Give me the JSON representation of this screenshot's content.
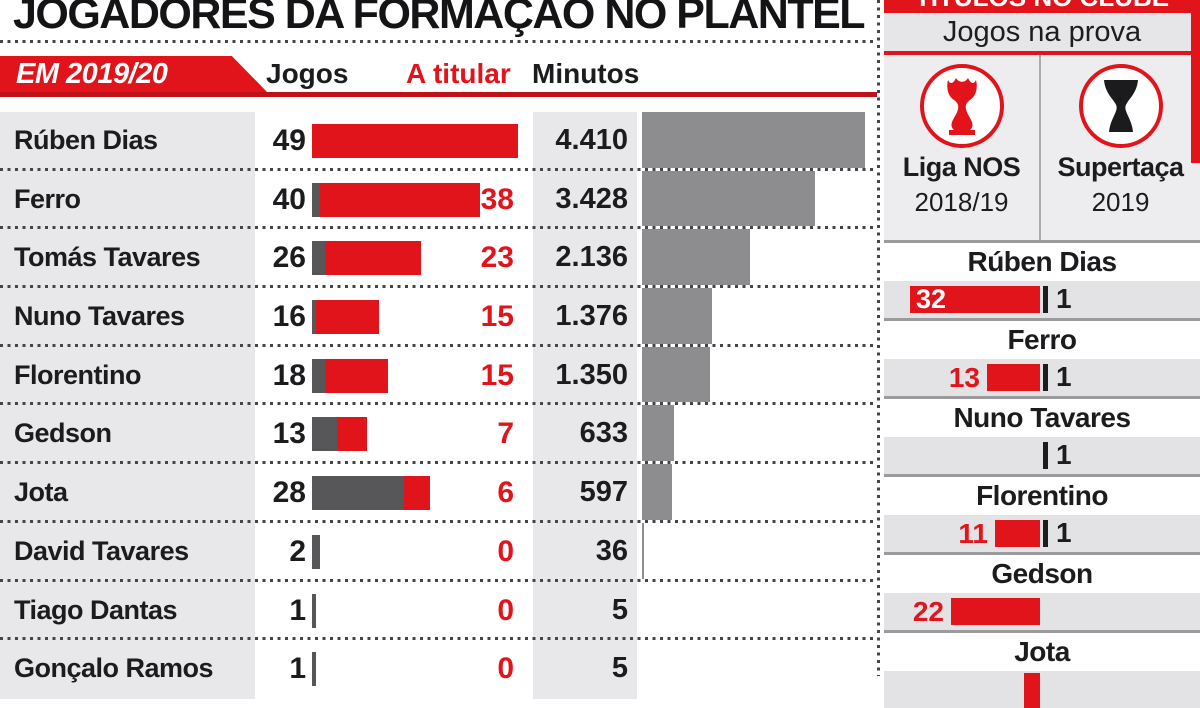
{
  "title": "JOGADORES DA FORMAÇÃO NO PLANTEL",
  "main": {
    "badge": "EM 2019/20",
    "columns": {
      "jogos": "Jogos",
      "titular": "A titular",
      "minutos": "Minutos"
    }
  },
  "right_panel": {
    "title": "TÍTULOS NO CLUBE",
    "subtitle": "Jogos na prova",
    "competitions": [
      {
        "name": "Liga NOS",
        "season": "2018/19"
      },
      {
        "name": "Supertaça",
        "season": "2019"
      }
    ]
  },
  "colors": {
    "red": "#e2141b",
    "dark_red_line": "#bf1218",
    "dark_gray_bar": "#57575a",
    "minutes_bar": "#8d8d8f",
    "row_bg": "#e8e8ea",
    "right_row_bg": "#e3e3e5",
    "separator": "#9b9b9d",
    "text": "#1c1c1e"
  },
  "chart_data": [
    {
      "type": "bar",
      "title": "JOGADORES DA FORMAÇÃO NO PLANTEL",
      "subtitle": "EM 2019/20",
      "categories": [
        "Rúben Dias",
        "Ferro",
        "Tomás Tavares",
        "Nuno Tavares",
        "Florentino",
        "Gedson",
        "Jota",
        "David Tavares",
        "Tiago Dantas",
        "Gonçalo Ramos"
      ],
      "series": [
        {
          "name": "Jogos",
          "values": [
            49,
            40,
            26,
            16,
            18,
            13,
            28,
            2,
            1,
            1
          ]
        },
        {
          "name": "A titular",
          "values": [
            49,
            38,
            23,
            15,
            15,
            7,
            6,
            0,
            0,
            0
          ]
        },
        {
          "name": "Minutos",
          "values": [
            4410,
            3428,
            2136,
            1376,
            1350,
            633,
            597,
            36,
            5,
            5
          ],
          "value_labels": [
            "4.410",
            "3.428",
            "2.136",
            "1.376",
            "1.350",
            "633",
            "597",
            "36",
            "5",
            "5"
          ]
        }
      ],
      "layout": {
        "bar_direction": "horizontal",
        "grid": "dotted-row-separators",
        "stacked_bar": "gray = jogos - a titular, red = a titular"
      }
    },
    {
      "type": "bar",
      "title": "TÍTULOS NO CLUBE",
      "subtitle": "Jogos na prova",
      "categories": [
        "Rúben Dias",
        "Ferro",
        "Nuno Tavares",
        "Florentino",
        "Gedson",
        "Jota"
      ],
      "series": [
        {
          "name": "Liga NOS 2018/19",
          "values": [
            32,
            13,
            0,
            11,
            22,
            null
          ]
        },
        {
          "name": "Supertaça 2019",
          "values": [
            1,
            1,
            1,
            1,
            0,
            null
          ]
        }
      ],
      "layout": {
        "bar_direction": "horizontal-right-aligned",
        "note": "Jota row cut off at image bottom"
      }
    }
  ]
}
